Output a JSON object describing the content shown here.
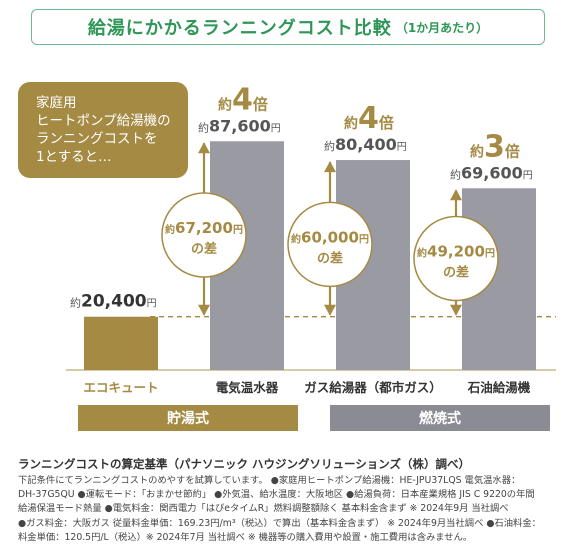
{
  "title": {
    "main": "給湯にかかるランニングコスト比較",
    "sub": "（1か月あたり）"
  },
  "bubble_text": "家庭用\nヒートポンプ給湯機の\nランニングコストを\n1とすると…",
  "colors": {
    "gold": "#a58a44",
    "gray": "#9a9aa2",
    "dark_gray": "#8b8b93",
    "green": "#2e9656",
    "dashed": "#a58a44",
    "circle_border": "#a58a44"
  },
  "chart_data": {
    "type": "bar",
    "unit": "円",
    "categories": [
      "エコキュート",
      "電気温水器",
      "ガス給湯器（都市ガス）",
      "石油給湯機"
    ],
    "values": [
      20400,
      87600,
      80400,
      69600
    ],
    "value_labels": [
      "20,400",
      "87,600",
      "80,400",
      "69,600"
    ],
    "value_prefix": "約",
    "multipliers": [
      null,
      "4",
      "4",
      "3"
    ],
    "multiplier_prefix": "約",
    "multiplier_suffix": "倍",
    "differences": [
      null,
      "67,200",
      "60,000",
      "49,200"
    ],
    "difference_suffix": "円",
    "difference_line2": "の差",
    "groups": [
      {
        "label": "貯湯式",
        "categories": [
          0,
          1
        ]
      },
      {
        "label": "燃焼式",
        "categories": [
          2,
          3
        ]
      }
    ]
  },
  "footnote": {
    "title": "ランニングコストの算定基準（パナソニック ハウジングソリューションズ（株）調べ）",
    "body": "下記条件にてランニングコストのめやすを試算しています。 ●家庭用ヒートポンプ給湯機：HE-JPU37LQS 電気温水器：\nDH-37G5QU ●運転モード：「おまかせ節約」 ●外気温、給水温度：大阪地区 ●給湯負荷：日本産業規格 JIS C 9220の年間\n給湯保温モード熱量 ●電気料金：関西電力「はぴeタイムR」燃料調整額除く 基本料金含まず ※ 2024年9月 当社調べ\n●ガス料金：大阪ガス 従量料金単価：169.23円/m³（税込）で算出（基本料金含まず） ※ 2024年9月当社調べ ●石油料金：\n料金単価：120.5円/L（税込）※ 2024年7月 当社調べ ※ 機器等の購入費用や設置・施工費用は含みません。"
  }
}
